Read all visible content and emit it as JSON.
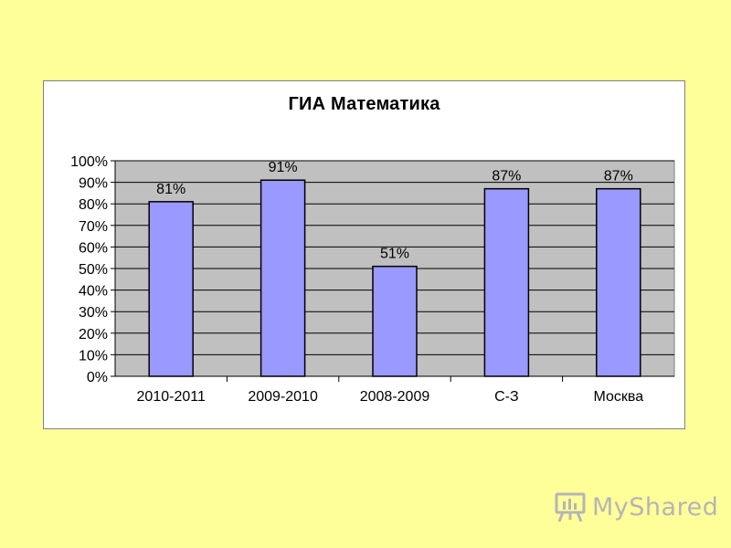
{
  "chart_data": {
    "type": "bar",
    "title": "ГИА Математика",
    "categories": [
      "2010-2011",
      "2009-2010",
      "2008-2009",
      "С-З",
      "Москва"
    ],
    "values": [
      81,
      91,
      51,
      87,
      87
    ],
    "data_labels": [
      "81%",
      "91%",
      "51%",
      "87%",
      "87%"
    ],
    "y_ticks": [
      "0%",
      "10%",
      "20%",
      "30%",
      "40%",
      "50%",
      "60%",
      "70%",
      "80%",
      "90%",
      "100%"
    ],
    "ylim": [
      0,
      100
    ],
    "grid": true,
    "legend": "none",
    "bar_color": "#9999ff",
    "plot_background": "#c0c0c0"
  },
  "watermark": {
    "text": "MyShared",
    "icon": "presentation-board-icon",
    "color": "#b5b5b5"
  },
  "colors": {
    "page_background": "#ffff99",
    "chart_background": "#ffffff"
  }
}
